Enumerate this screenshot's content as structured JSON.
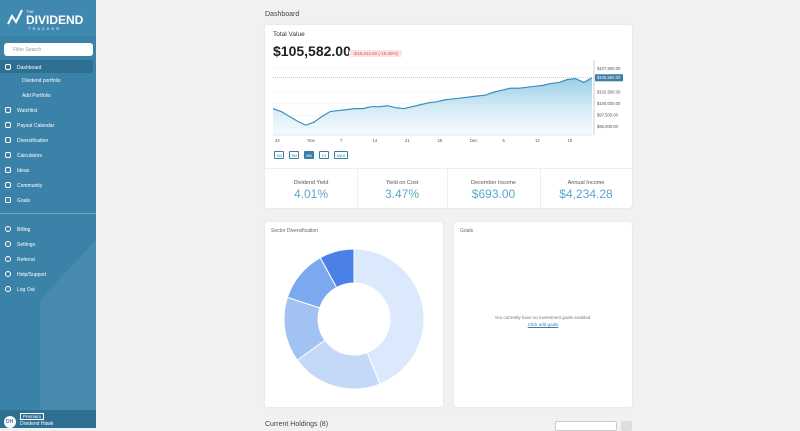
{
  "sidebar": {
    "logo": {
      "small": "THE",
      "main": "DIVIDEND",
      "sub": "TRACKER"
    },
    "search_placeholder": "Filter Search",
    "nav": [
      "Dashboard",
      "Watchlist",
      "Payout Calendar",
      "Diversification",
      "Calculators",
      "Ideas",
      "Community",
      "Goals"
    ],
    "sub_nav": [
      "Dividend portfolio",
      "Add Portfolio"
    ],
    "bottom_nav": [
      "Billing",
      "Settings",
      "Referral",
      "Help/Support",
      "Log Out"
    ],
    "user": {
      "initials": "DH",
      "badge": "Premium",
      "name": "Dividend Hawk"
    }
  },
  "page_title": "Dashboard",
  "total_value": {
    "title": "Total Value",
    "amount": "$105,582.00",
    "change": "-$18,344.00 (-15.69%)",
    "range_buttons": [
      "1M",
      "3M",
      "6M",
      "1Y",
      "MAX"
    ],
    "active_range_index": 2,
    "chart": {
      "type": "line",
      "color": "#3a8fc0",
      "ylim": [
        93300,
        109400
      ],
      "yticks": [
        {
          "value": 107500,
          "label": "$107,500.00"
        },
        {
          "value": 102500,
          "label": "$102,500.00"
        },
        {
          "value": 100000,
          "label": "$100,000.00"
        },
        {
          "value": 97500,
          "label": "$97,500.00"
        },
        {
          "value": 95000,
          "label": "$95,000.00"
        }
      ],
      "current": {
        "value": 105582,
        "label": "$105,582.00"
      },
      "x_labels": [
        "24",
        "Nov",
        "7",
        "14",
        "21",
        "28",
        "Dec",
        "5",
        "12",
        "19"
      ],
      "values": [
        98960,
        98335,
        97293,
        96252,
        95419,
        96043,
        97293,
        98335,
        98543,
        98751,
        98960,
        98960,
        99376,
        99376,
        99585,
        99168,
        98960,
        99376,
        99793,
        100209,
        100418,
        100834,
        101043,
        101251,
        101459,
        101668,
        101876,
        102501,
        102917,
        103334,
        103334,
        103542,
        103751,
        103959,
        104375,
        104584,
        105209,
        105417,
        104584,
        105582
      ]
    }
  },
  "stats": [
    {
      "label": "Dividend Yield",
      "value": "4.01%"
    },
    {
      "label": "Yield on Cost",
      "value": "3.47%"
    },
    {
      "label": "December Income",
      "value": "$693.00"
    },
    {
      "label": "Annual Income",
      "value": "$4,234.28"
    }
  ],
  "sector": {
    "title": "Sector Diversification",
    "chart": {
      "type": "pie",
      "values": [
        44,
        21,
        15,
        12,
        8
      ],
      "colors": [
        "#dce8fb",
        "#c4d9f7",
        "#a2c2f3",
        "#7ba8ee",
        "#4b80e6"
      ]
    }
  },
  "goals": {
    "title": "Goals",
    "message": "You currently have no investment goals enabled.",
    "link": "Click add goals"
  },
  "holdings": {
    "title": "Current Holdings (8)"
  }
}
